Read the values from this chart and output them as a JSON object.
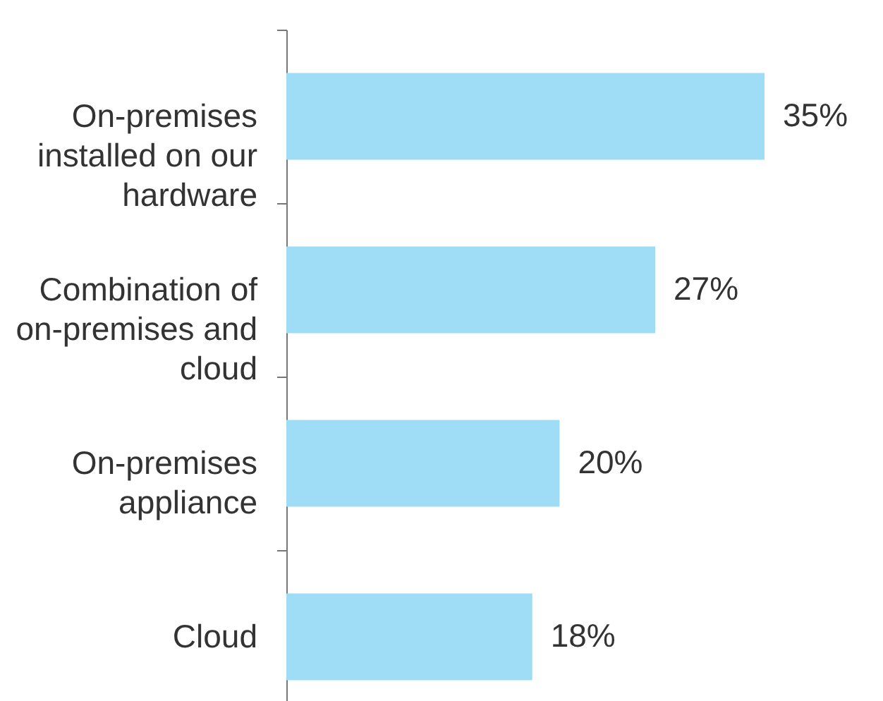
{
  "chart_data": {
    "type": "bar",
    "orientation": "horizontal",
    "categories": [
      "On-premises installed on our hardware",
      "Combination of on-premises and cloud",
      "On-premises appliance",
      "Cloud"
    ],
    "values": [
      35,
      27,
      20,
      18
    ],
    "value_labels": [
      "35%",
      "27%",
      "20%",
      "18%"
    ],
    "color": "#9fdcf6",
    "tick_labels": "y",
    "grid": false
  }
}
